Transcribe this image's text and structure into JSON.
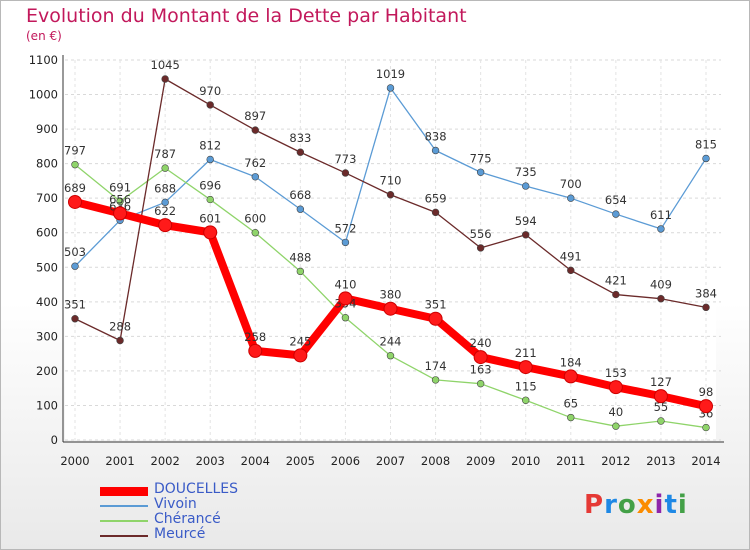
{
  "title": "Evolution du Montant de la Dette par Habitant",
  "subtitle": "(en €)",
  "logo": {
    "text": "Proxiti",
    "letters": [
      "P",
      "r",
      "o",
      "x",
      "i",
      "t",
      "i"
    ],
    "colors": [
      "#e53935",
      "#1e88e5",
      "#43a047",
      "#fb8c00",
      "#8e24aa",
      "#1e88e5",
      "#43a047"
    ]
  },
  "chart_data": {
    "type": "line",
    "title": "Evolution du Montant de la Dette par Habitant",
    "ylabel": "(en €)",
    "xlabel": "",
    "x": [
      "2000",
      "2001",
      "2002",
      "2003",
      "2004",
      "2005",
      "2006",
      "2007",
      "2008",
      "2009",
      "2010",
      "2011",
      "2012",
      "2013",
      "2014"
    ],
    "yticks": [
      "0",
      "100",
      "200",
      "300",
      "400",
      "500",
      "600",
      "700",
      "800",
      "900",
      "1000",
      "1100"
    ],
    "ylim": [
      0,
      1100
    ],
    "grid": true,
    "legend": "bottom-left",
    "series": [
      {
        "name": "Vivoin",
        "color": "#5b9bd5",
        "values": [
          503,
          636,
          688,
          812,
          762,
          668,
          572,
          1019,
          838,
          775,
          735,
          700,
          654,
          611,
          815
        ]
      },
      {
        "name": "Chérancé",
        "color": "#8fd46a",
        "values": [
          797,
          691,
          787,
          696,
          600,
          488,
          354,
          244,
          174,
          163,
          115,
          65,
          40,
          55,
          36
        ]
      },
      {
        "name": "Meurcé",
        "color": "#6b2a2a",
        "values": [
          351,
          288,
          1045,
          970,
          897,
          833,
          773,
          710,
          659,
          556,
          594,
          491,
          421,
          409,
          384
        ]
      },
      {
        "name": "DOUCELLES",
        "color": "#ff0000",
        "values": [
          689,
          656,
          622,
          601,
          258,
          245,
          410,
          380,
          351,
          240,
          211,
          184,
          153,
          127,
          98
        ]
      }
    ],
    "legend_order": [
      "DOUCELLES",
      "Vivoin",
      "Chérancé",
      "Meurcé"
    ]
  }
}
